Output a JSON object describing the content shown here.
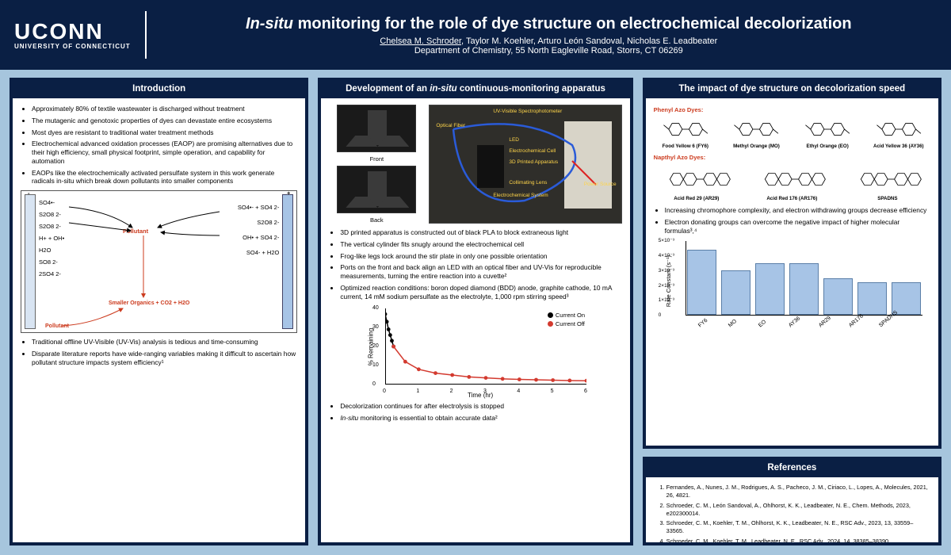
{
  "header": {
    "logo": "UCONN",
    "logo_sub": "UNIVERSITY OF CONNECTICUT",
    "title_prefix": "In-situ",
    "title_rest": " monitoring for the role of dye structure on electrochemical decolorization",
    "lead_author": "Chelsea M. Schroder",
    "coauthors": ", Taylor M. Koehler, Arturo León Sandoval, Nicholas E. Leadbeater",
    "dept": "Department of Chemistry, 55 North Eagleville Road, Storrs, CT 06269"
  },
  "intro": {
    "title": "Introduction",
    "bullets_top": [
      "Approximately 80% of textile wastewater is discharged without treatment",
      "The mutagenic and genotoxic properties of dyes can devastate entire ecosystems",
      "Most dyes are resistant to traditional water treatment methods",
      "Electrochemical advanced oxidation processes (EAOP) are promising alternatives due to their high efficiency, small physical footprint, simple operation, and capability for automation",
      "EAOPs like the electrochemically activated persulfate system in this work generate radicals in-situ which break down pollutants into smaller components"
    ],
    "diagram": {
      "species_left": [
        "SO4•-",
        "S2O8 2-",
        "S2O8 2-",
        "H+ + OH•",
        "H2O",
        "SO8 2-",
        "2SO4 2-"
      ],
      "species_right": [
        "SO4•- + SO4 2-",
        "S2O8 2-",
        "OH• + SO4 2-",
        "SO4- + H2O"
      ],
      "center": "Pollutant",
      "bottom": "Smaller Organics + CO2 + H2O",
      "bottom_label": "Pollutant",
      "plus": "+",
      "minus": "-"
    },
    "bullets_bottom": [
      "Traditional offline UV-Visible (UV-Vis) analysis is tedious and time-consuming",
      "Disparate literature reports have wide-ranging variables making it difficult to ascertain how pollutant structure impacts system efficiency¹"
    ]
  },
  "apparatus": {
    "title_pre": "Development of an ",
    "title_em": "in-situ",
    "title_post": " continuous-monitoring apparatus",
    "front": "Front",
    "back": "Back",
    "annotations": [
      "UV-Visible Spectrophotometer",
      "Optical Fiber",
      "LED",
      "Electrochemical Cell",
      "3D Printed Apparatus",
      "Collimating Lens",
      "Electrochemical System",
      "Power Source"
    ],
    "bullets": [
      "3D printed apparatus is constructed out of black PLA to block extraneous light",
      "The vertical cylinder fits snugly around the electrochemical cell",
      "Frog-like legs lock around the stir plate in only one possible orientation",
      "Ports on the front and back align an LED with an optical fiber and UV-Vis for reproducible measurements, turning the entire reaction into a cuvette²",
      "Optimized reaction conditions: boron doped diamond (BDD) anode, graphite cathode, 10 mA current, 14 mM sodium persulfate as the electrolyte, 1,000 rpm stirring speed³"
    ],
    "chart": {
      "type": "line",
      "xlabel": "Time (hr)",
      "ylabel": "% Remaining",
      "xlim": [
        0,
        6
      ],
      "ylim": [
        0,
        40
      ],
      "xtick_step": 1,
      "ytick_step": 10,
      "series": [
        {
          "label": "Current On",
          "color": "#000000",
          "points": [
            [
              0.0,
              37
            ],
            [
              0.05,
              33
            ],
            [
              0.1,
              29
            ],
            [
              0.15,
              26
            ],
            [
              0.2,
              23
            ],
            [
              0.25,
              20
            ]
          ]
        },
        {
          "label": "Current Off",
          "color": "#d33a2f",
          "points": [
            [
              0.25,
              20
            ],
            [
              0.6,
              12
            ],
            [
              1,
              8
            ],
            [
              1.5,
              6
            ],
            [
              2,
              5
            ],
            [
              2.5,
              4
            ],
            [
              3,
              3.5
            ],
            [
              3.5,
              3
            ],
            [
              4,
              2.7
            ],
            [
              4.5,
              2.5
            ],
            [
              5,
              2.3
            ],
            [
              5.5,
              2.1
            ],
            [
              6,
              2
            ]
          ]
        }
      ]
    },
    "bullets_bottom": [
      "Decolorization continues for after electrolysis is stopped",
      "In-situ monitoring is essential to obtain accurate data²"
    ]
  },
  "impact": {
    "title": "The impact of dye structure on decolorization speed",
    "group1_label": "Phenyl Azo Dyes:",
    "group1": [
      {
        "name": "Food Yellow 6 (FY6)"
      },
      {
        "name": "Methyl Orange (MO)"
      },
      {
        "name": "Ethyl Orange (EO)"
      },
      {
        "name": "Acid Yellow 36 (AY36)"
      }
    ],
    "group2_label": "Napthyl Azo Dyes:",
    "group2": [
      {
        "name": "Acid Red 29 (AR29)"
      },
      {
        "name": "Acid Red 176 (AR176)"
      },
      {
        "name": "SPADNS"
      }
    ],
    "bullets": [
      "Increasing chromophore complexity, and electron withdrawing groups decrease efficiency",
      "Electron donating groups can overcome the negative impact of higher molecular formulas³,⁴"
    ],
    "barchart": {
      "type": "bar",
      "ylabel": "Rate Constant (s⁻¹)",
      "ylim": [
        0,
        0.005
      ],
      "ytick_vals": [
        "0",
        "1×10⁻³",
        "2×10⁻³",
        "3×10⁻³",
        "4×10⁻³",
        "5×10⁻³"
      ],
      "bar_color": "#a7c4e6",
      "bar_border": "#5b7fa8",
      "categories": [
        "FY6",
        "MO",
        "EO",
        "AY36",
        "AR29",
        "AR176",
        "SPADNS"
      ],
      "values": [
        0.0044,
        0.003,
        0.0035,
        0.0035,
        0.0025,
        0.0022,
        0.0022
      ]
    }
  },
  "refs": {
    "title": "References",
    "items": [
      "Fernandes, A., Nunes, J. M., Rodrigues, A. S., Pacheco, J. M., Ciriaco, L., Lopes, A., Molecules, 2021, 26, 4821.",
      "Schroeder, C. M., León Sandoval, A., Ohlhorst, K. K., Leadbeater, N. E., Chem. Methods, 2023, e202300014.",
      "Schroeder, C. M., Koehler, T. M., Ohlhorst, K. K., Leadbeater, N. E., RSC Adv., 2023, 13, 33559–33565.",
      "Schroeder, C. M., Koehler, T. M., Leadbeater, N. E., RSC Adv., 2024, 14, 38385–38390."
    ]
  },
  "colors": {
    "header_bg": "#0a1f44",
    "page_bg": "#a6c5dd",
    "accent_red": "#cc3b1e",
    "bar": "#a7c4e6"
  }
}
